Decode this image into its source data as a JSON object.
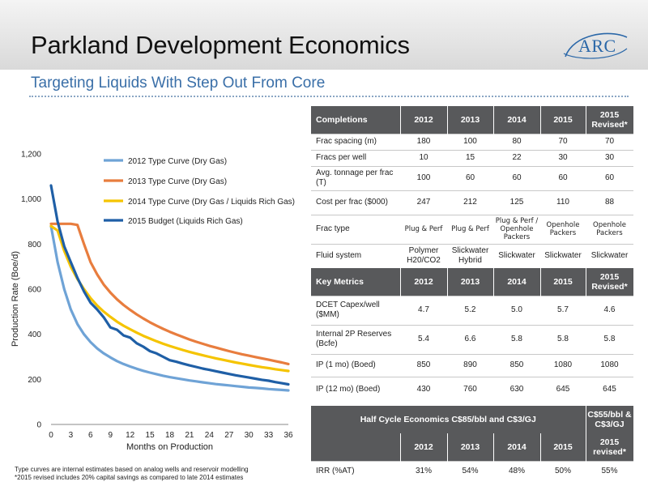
{
  "header": {
    "title": "Parkland Development Economics",
    "subtitle": "Targeting Liquids With Step Out From Core",
    "logo_text": "ARC"
  },
  "chart_data": {
    "type": "line",
    "title": "",
    "xlabel": "Months on Production",
    "ylabel": "Production Rate (Boe/d)",
    "xlim": [
      0,
      36
    ],
    "ylim": [
      0,
      1200
    ],
    "x_ticks": [
      "0",
      "3",
      "6",
      "9",
      "12",
      "15",
      "18",
      "21",
      "24",
      "27",
      "30",
      "33",
      "36"
    ],
    "y_ticks": [
      "0",
      "200",
      "400",
      "600",
      "800",
      "1,000",
      "1,200"
    ],
    "x": [
      0,
      1,
      2,
      3,
      4,
      5,
      6,
      7,
      8,
      9,
      10,
      11,
      12,
      13,
      14,
      15,
      16,
      17,
      18,
      19,
      20,
      21,
      22,
      23,
      24,
      25,
      26,
      27,
      28,
      29,
      30,
      31,
      32,
      33,
      34,
      35,
      36
    ],
    "legend_position": "top-right",
    "grid": false,
    "series": [
      {
        "name": "2012 Type Curve (Dry Gas)",
        "color": "#6fa3d6",
        "values": [
          880,
          720,
          600,
          510,
          445,
          400,
          365,
          337,
          315,
          297,
          281,
          268,
          257,
          247,
          238,
          230,
          223,
          216,
          210,
          205,
          200,
          195,
          191,
          187,
          183,
          179,
          176,
          173,
          170,
          167,
          164,
          162,
          160,
          157,
          155,
          153,
          151
        ]
      },
      {
        "name": "2013 Type Curve (Dry Gas)",
        "color": "#e87d3e",
        "values": [
          890,
          890,
          890,
          890,
          885,
          800,
          720,
          665,
          620,
          585,
          555,
          530,
          508,
          488,
          470,
          453,
          438,
          424,
          411,
          399,
          388,
          377,
          367,
          358,
          349,
          341,
          333,
          325,
          318,
          311,
          305,
          299,
          293,
          287,
          281,
          275,
          268
        ]
      },
      {
        "name": "2014 Type Curve (Dry Gas / Liquids Rich Gas)",
        "color": "#f5c400",
        "values": [
          880,
          860,
          770,
          700,
          645,
          600,
          560,
          527,
          500,
          477,
          456,
          438,
          422,
          407,
          393,
          381,
          369,
          358,
          348,
          339,
          330,
          322,
          314,
          307,
          300,
          293,
          287,
          281,
          275,
          270,
          264,
          259,
          254,
          250,
          245,
          241,
          237
        ]
      },
      {
        "name": "2015 Budget (Liquids Rich Gas)",
        "color": "#1f5fa6",
        "values": [
          1060,
          900,
          790,
          720,
          650,
          590,
          540,
          510,
          475,
          430,
          420,
          395,
          385,
          360,
          345,
          325,
          315,
          300,
          285,
          278,
          270,
          262,
          255,
          248,
          242,
          236,
          230,
          224,
          218,
          213,
          208,
          203,
          198,
          194,
          188,
          183,
          178
        ]
      }
    ]
  },
  "table": {
    "completions_header": [
      "Completions",
      "2012",
      "2013",
      "2014",
      "2015",
      "2015 Revised*"
    ],
    "completions_rows": [
      [
        "Frac spacing (m)",
        "180",
        "100",
        "80",
        "70",
        "70"
      ],
      [
        "Fracs per well",
        "10",
        "15",
        "22",
        "30",
        "30"
      ],
      [
        "Avg. tonnage per frac (T)",
        "100",
        "60",
        "60",
        "60",
        "60"
      ],
      [
        "Cost per frac ($000)",
        "247",
        "212",
        "125",
        "110",
        "88"
      ],
      [
        "Frac type",
        "Plug & Perf",
        "Plug & Perf",
        "Plug & Perf / Openhole Packers",
        "Openhole Packers",
        "Openhole Packers"
      ],
      [
        "Fluid system",
        "Polymer H20/CO2",
        "Slickwater Hybrid",
        "Slickwater",
        "Slickwater",
        "Slickwater"
      ]
    ],
    "metrics_header": [
      "Key Metrics",
      "2012",
      "2013",
      "2014",
      "2015",
      "2015 Revised*"
    ],
    "metrics_rows": [
      [
        "DCET Capex/well ($MM)",
        "4.7",
        "5.2",
        "5.0",
        "5.7",
        "4.6"
      ],
      [
        "Internal 2P Reserves (Bcfe)",
        "5.4",
        "6.6",
        "5.8",
        "5.8",
        "5.8"
      ],
      [
        "IP (1 mo) (Boed)",
        "850",
        "890",
        "850",
        "1080",
        "1080"
      ],
      [
        "IP (12 mo) (Boed)",
        "430",
        "760",
        "630",
        "645",
        "645"
      ]
    ],
    "half_cycle_label": "Half Cycle Economics C$85/bbl and C$3/GJ",
    "half_cycle_alt": "C$55/bbl & C$3/GJ",
    "irr_header": [
      "",
      "2012",
      "2013",
      "2014",
      "2015",
      "2015 revised*"
    ],
    "irr_row": [
      "IRR (%AT)",
      "31%",
      "54%",
      "48%",
      "50%",
      "55%"
    ]
  },
  "footnotes": [
    "Type curves are internal estimates based on analog wells and reservoir modelling",
    "*2015 revised includes 20% capital savings as compared to late 2014 estimates"
  ]
}
